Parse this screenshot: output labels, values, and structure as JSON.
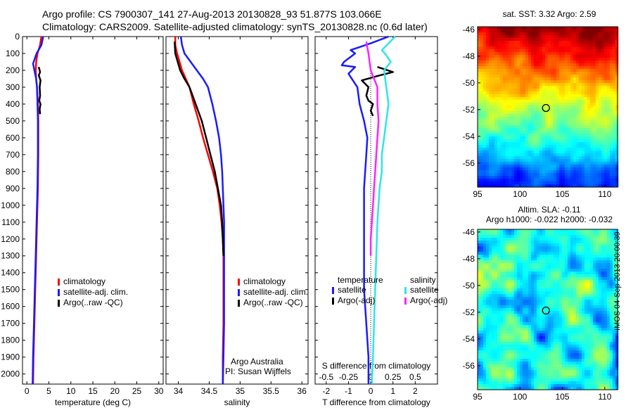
{
  "header": {
    "line1": "Argo profile: CS 7900307_141 27-Aug-2013 20130828_93 51.877S 103.066E",
    "line2": "Climatology: CARS2009. Satellite-adjusted climatology: synTS_20130828.nc (0.6d later)"
  },
  "side_label": "IMOS 04-Sep-2013 20:00:39",
  "colors": {
    "red": "#ff0000",
    "blue": "#1a1aff",
    "black": "#000000",
    "cyan": "#2ee6e6",
    "magenta": "#ff22ff"
  },
  "chart_data": [
    {
      "type": "line",
      "id": "temperature",
      "xlabel": "temperature (deg C)",
      "ylabel": "",
      "xlim": [
        -1,
        31
      ],
      "ylim": [
        2060,
        0
      ],
      "xticks": [
        0,
        5,
        10,
        15,
        20,
        25,
        30
      ],
      "yticks": [
        0,
        100,
        200,
        300,
        400,
        500,
        600,
        700,
        800,
        900,
        1000,
        1100,
        1200,
        1300,
        1400,
        1500,
        1600,
        1700,
        1800,
        1900,
        2000
      ],
      "legend": {
        "placement": "lower-middle",
        "entries": [
          "climatology",
          "satellite-adj. clim.",
          "Argo(..raw -QC)"
        ]
      },
      "series": [
        {
          "name": "climatology",
          "color": "red",
          "points": [
            [
              3.3,
              0
            ],
            [
              3.0,
              50
            ],
            [
              2.4,
              100
            ],
            [
              2.1,
              150
            ],
            [
              2.0,
              200
            ],
            [
              2.1,
              250
            ],
            [
              2.3,
              300
            ],
            [
              2.5,
              400
            ],
            [
              2.6,
              500
            ],
            [
              2.6,
              700
            ],
            [
              2.5,
              900
            ],
            [
              2.3,
              1100
            ],
            [
              2.1,
              1300
            ],
            [
              1.9,
              1500
            ],
            [
              1.7,
              1700
            ],
            [
              1.5,
              1900
            ],
            [
              1.4,
              2060
            ]
          ]
        },
        {
          "name": "satellite-adj. clim.",
          "color": "blue",
          "points": [
            [
              3.7,
              0
            ],
            [
              3.3,
              50
            ],
            [
              2.2,
              100
            ],
            [
              1.4,
              160
            ],
            [
              1.7,
              200
            ],
            [
              2.1,
              250
            ],
            [
              2.3,
              300
            ],
            [
              2.4,
              400
            ],
            [
              2.5,
              500
            ],
            [
              2.5,
              700
            ],
            [
              2.4,
              900
            ],
            [
              2.2,
              1100
            ],
            [
              2.0,
              1300
            ],
            [
              1.8,
              1500
            ],
            [
              1.6,
              1700
            ],
            [
              1.4,
              1900
            ],
            [
              1.3,
              2060
            ]
          ]
        },
        {
          "name": "Argo(..raw -QC)",
          "color": "black",
          "points": [
            [
              2.7,
              180
            ],
            [
              3.0,
              210
            ],
            [
              2.7,
              230
            ],
            [
              3.1,
              260
            ],
            [
              2.9,
              300
            ],
            [
              3.0,
              350
            ],
            [
              2.8,
              380
            ],
            [
              3.1,
              400
            ],
            [
              2.9,
              430
            ],
            [
              3.0,
              460
            ]
          ]
        }
      ]
    },
    {
      "type": "line",
      "id": "salinity",
      "xlabel": "salinity",
      "xlim": [
        33.8,
        36.1
      ],
      "ylim": [
        2060,
        0
      ],
      "xticks": [
        34,
        34.5,
        35,
        35.5,
        36
      ],
      "legend": {
        "placement": "lower-middle",
        "entries": [
          "climatology",
          "satellite-adj. clim.",
          "Argo(..raw -QC)"
        ]
      },
      "annotation": [
        "Argo Australia",
        "PI: Susan Wijffels"
      ],
      "series": [
        {
          "name": "climatology",
          "color": "red",
          "points": [
            [
              33.95,
              0
            ],
            [
              33.95,
              50
            ],
            [
              33.98,
              100
            ],
            [
              34.02,
              150
            ],
            [
              34.06,
              200
            ],
            [
              34.12,
              250
            ],
            [
              34.18,
              300
            ],
            [
              34.25,
              400
            ],
            [
              34.33,
              500
            ],
            [
              34.4,
              600
            ],
            [
              34.48,
              700
            ],
            [
              34.56,
              800
            ],
            [
              34.63,
              900
            ],
            [
              34.67,
              1000
            ],
            [
              34.7,
              1100
            ],
            [
              34.72,
              1200
            ],
            [
              34.73,
              1300
            ],
            [
              34.73,
              1500
            ],
            [
              34.73,
              1700
            ],
            [
              34.72,
              1900
            ],
            [
              34.72,
              2060
            ]
          ]
        },
        {
          "name": "satellite-adj. clim.",
          "color": "blue",
          "points": [
            [
              34.04,
              0
            ],
            [
              34.06,
              50
            ],
            [
              34.1,
              100
            ],
            [
              34.2,
              150
            ],
            [
              34.3,
              200
            ],
            [
              34.4,
              250
            ],
            [
              34.48,
              300
            ],
            [
              34.55,
              400
            ],
            [
              34.61,
              500
            ],
            [
              34.66,
              600
            ],
            [
              34.69,
              700
            ],
            [
              34.71,
              800
            ],
            [
              34.72,
              900
            ],
            [
              34.73,
              1000
            ],
            [
              34.74,
              1100
            ],
            [
              34.74,
              1200
            ],
            [
              34.74,
              1300
            ],
            [
              34.74,
              1500
            ],
            [
              34.74,
              1700
            ],
            [
              34.73,
              1900
            ],
            [
              34.72,
              2060
            ]
          ]
        },
        {
          "name": "Argo(..raw -QC)",
          "color": "black",
          "points": [
            [
              33.94,
              30
            ],
            [
              33.95,
              100
            ],
            [
              33.99,
              150
            ],
            [
              34.03,
              200
            ],
            [
              34.1,
              250
            ],
            [
              34.18,
              300
            ],
            [
              34.28,
              400
            ],
            [
              34.38,
              500
            ],
            [
              34.45,
              600
            ],
            [
              34.52,
              700
            ],
            [
              34.59,
              800
            ],
            [
              34.64,
              900
            ],
            [
              34.69,
              1000
            ],
            [
              34.71,
              1100
            ],
            [
              34.72,
              1200
            ],
            [
              34.73,
              1300
            ]
          ]
        }
      ]
    },
    {
      "type": "line",
      "id": "differences",
      "xlabel": "T difference from climatology",
      "title_bottom": "S difference from climatology",
      "xlim": [
        -2.5,
        3.0
      ],
      "ylim": [
        2060,
        0
      ],
      "xticks": [
        -2,
        -1,
        0,
        1,
        2
      ],
      "secondary_xticks": [
        "-0.5",
        "-0.25",
        "0",
        "0.25",
        "0.5"
      ],
      "secondary_xtick_positions": [
        -2,
        -1,
        0,
        1,
        2
      ],
      "legend_temperature": {
        "title": "temperature",
        "entries": [
          "satellite",
          "Argo(-adj)"
        ]
      },
      "legend_salinity": {
        "title": "salinity",
        "entries": [
          "satellite",
          "Argo(-adj)"
        ]
      },
      "series": [
        {
          "name": "satellite",
          "group": "temperature",
          "color": "blue",
          "points": [
            [
              0.8,
              0
            ],
            [
              0.0,
              40
            ],
            [
              -0.9,
              80
            ],
            [
              -0.7,
              100
            ],
            [
              -1.2,
              150
            ],
            [
              -1.3,
              170
            ],
            [
              -0.7,
              180
            ],
            [
              -1.0,
              220
            ],
            [
              -0.6,
              300
            ],
            [
              -0.5,
              400
            ],
            [
              -0.3,
              500
            ],
            [
              -0.15,
              600
            ],
            [
              -0.2,
              700
            ],
            [
              -0.25,
              800
            ],
            [
              -0.3,
              900
            ],
            [
              -0.3,
              1100
            ],
            [
              -0.3,
              1300
            ],
            [
              -0.3,
              1500
            ],
            [
              -0.2,
              1700
            ],
            [
              -0.1,
              1900
            ],
            [
              -0.1,
              2060
            ]
          ]
        },
        {
          "name": "Argo(-adj)",
          "group": "temperature",
          "color": "black",
          "points": [
            [
              0.3,
              180
            ],
            [
              1.0,
              210
            ],
            [
              0.4,
              230
            ],
            [
              -0.4,
              260
            ],
            [
              -0.1,
              300
            ],
            [
              -0.2,
              350
            ],
            [
              -0.1,
              380
            ],
            [
              0.1,
              400
            ],
            [
              0.0,
              440
            ],
            [
              0.1,
              470
            ]
          ]
        },
        {
          "name": "satellite",
          "group": "salinity",
          "color": "cyan",
          "points": [
            [
              1.1,
              0
            ],
            [
              0.5,
              80
            ],
            [
              0.7,
              110
            ],
            [
              0.9,
              150
            ],
            [
              0.6,
              200
            ],
            [
              0.7,
              300
            ],
            [
              0.8,
              400
            ],
            [
              0.7,
              500
            ],
            [
              0.6,
              600
            ],
            [
              0.5,
              700
            ],
            [
              0.5,
              800
            ],
            [
              0.4,
              900
            ],
            [
              0.3,
              1100
            ],
            [
              0.25,
              1300
            ],
            [
              0.2,
              1500
            ],
            [
              0.15,
              1700
            ],
            [
              0.1,
              1900
            ],
            [
              0.05,
              2060
            ]
          ]
        },
        {
          "name": "Argo(-adj)",
          "group": "salinity",
          "color": "magenta",
          "points": [
            [
              -0.2,
              30
            ],
            [
              -0.1,
              100
            ],
            [
              0.0,
              200
            ],
            [
              0.3,
              300
            ],
            [
              0.3,
              400
            ],
            [
              0.35,
              500
            ],
            [
              0.3,
              600
            ],
            [
              0.25,
              700
            ],
            [
              0.2,
              800
            ],
            [
              0.15,
              900
            ],
            [
              0.1,
              1000
            ],
            [
              0.05,
              1100
            ],
            [
              0.0,
              1200
            ],
            [
              0.0,
              1300
            ]
          ]
        }
      ]
    },
    {
      "type": "heatmap",
      "id": "sst_map",
      "title": "sat. SST: 3.32 Argo: 2.59",
      "xlim": [
        95,
        111.5
      ],
      "ylim": [
        -57.8,
        -45.8
      ],
      "xticks": [
        95,
        100,
        105,
        110
      ],
      "yticks": [
        -46,
        -48,
        -50,
        -52,
        -54,
        -56
      ],
      "marker": {
        "lon": 103.066,
        "lat": -51.877
      }
    },
    {
      "type": "heatmap",
      "id": "sla_map",
      "title": "Altim. SLA: -0.11",
      "subtitle": "Argo h1000: -0.022 h2000: -0.032",
      "xlim": [
        95,
        111.5
      ],
      "ylim": [
        -57.8,
        -45.8
      ],
      "xticks": [
        95,
        100,
        105,
        110
      ],
      "yticks": [
        -46,
        -48,
        -50,
        -52,
        -54,
        -56
      ],
      "marker": {
        "lon": 103.066,
        "lat": -51.877
      }
    }
  ]
}
